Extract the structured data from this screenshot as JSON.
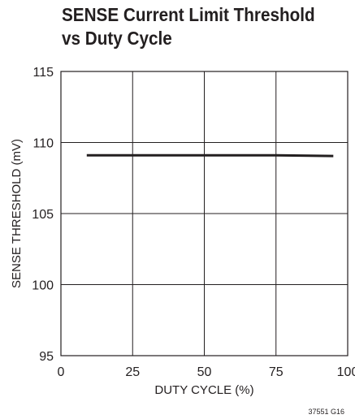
{
  "chart_data": {
    "type": "line",
    "title": "SENSE Current Limit Threshold",
    "subtitle": "vs Duty Cycle",
    "xlabel": "DUTY CYCLE (%)",
    "ylabel": "SENSE THRESHOLD (mV)",
    "xlim": [
      0,
      100
    ],
    "ylim": [
      95,
      115
    ],
    "xticks": [
      0,
      25,
      50,
      75,
      100
    ],
    "yticks": [
      95,
      100,
      105,
      110,
      115
    ],
    "xtick_labels": [
      "0",
      "25",
      "50",
      "75",
      "100"
    ],
    "ytick_labels": [
      "95",
      "100",
      "105",
      "110",
      "115"
    ],
    "grid": true,
    "series": [
      {
        "x": [
          9,
          25,
          50,
          75,
          95
        ],
        "y": [
          109.1,
          109.1,
          109.1,
          109.1,
          109.05
        ]
      }
    ],
    "colors": {
      "line": "#231f20",
      "grid": "#231f20",
      "text": "#231f20"
    },
    "figure_id": "37551 G16"
  }
}
